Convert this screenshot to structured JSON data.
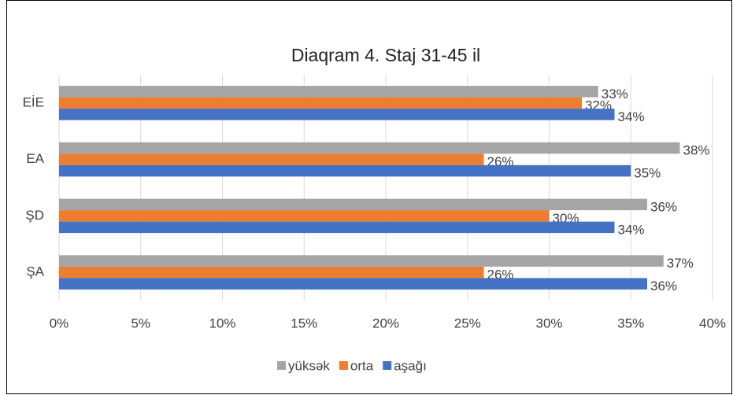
{
  "chart_data": {
    "type": "bar",
    "orientation": "horizontal",
    "title": "Diaqram 4. Staj 31-45 il",
    "categories": [
      "EİE",
      "EA",
      "ŞD",
      "ŞA"
    ],
    "series": [
      {
        "name": "yüksək",
        "color": "#a5a5a5",
        "values": [
          33,
          38,
          36,
          37
        ],
        "value_labels": [
          "33%",
          "38%",
          "36%",
          "37%"
        ]
      },
      {
        "name": "orta",
        "color": "#ed7d31",
        "values": [
          32,
          26,
          30,
          26
        ],
        "value_labels": [
          "32%",
          "26%",
          "30%",
          "26%"
        ]
      },
      {
        "name": "aşağı",
        "color": "#4472c4",
        "values": [
          34,
          35,
          34,
          36
        ],
        "value_labels": [
          "34%",
          "35%",
          "34%",
          "36%"
        ]
      }
    ],
    "xlim": [
      0,
      40
    ],
    "xticks": [
      {
        "value": 0,
        "label": "0%"
      },
      {
        "value": 5,
        "label": "5%"
      },
      {
        "value": 10,
        "label": "10%"
      },
      {
        "value": 15,
        "label": "15%"
      },
      {
        "value": 20,
        "label": "20%"
      },
      {
        "value": 25,
        "label": "25%"
      },
      {
        "value": 30,
        "label": "30%"
      },
      {
        "value": 35,
        "label": "35%"
      },
      {
        "value": 40,
        "label": "40%"
      }
    ],
    "grid": true,
    "legend": "bottom"
  }
}
